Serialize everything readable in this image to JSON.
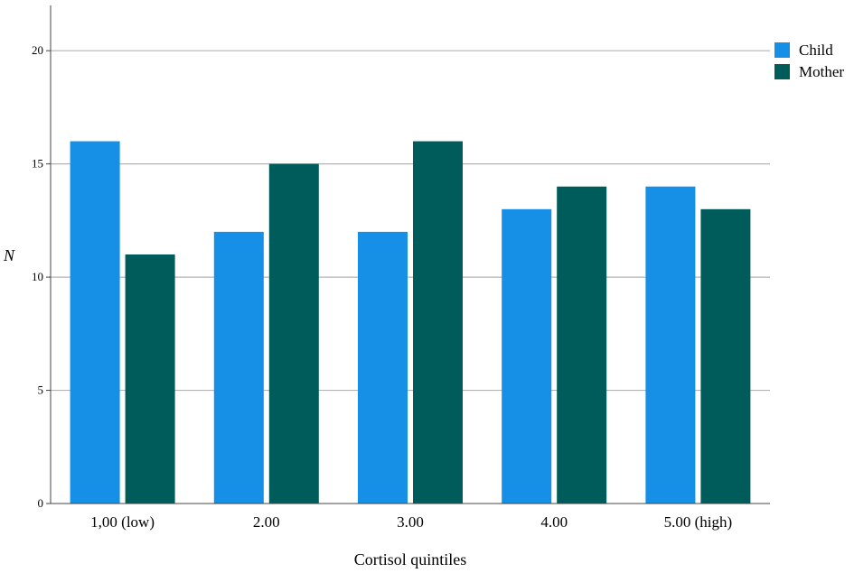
{
  "chart_data": {
    "type": "bar",
    "title": "",
    "xlabel": "Cortisol quintiles",
    "ylabel": "N",
    "ylim": [
      0,
      22
    ],
    "yticks": [
      0,
      5,
      10,
      15,
      20
    ],
    "grid": true,
    "legend_position": "top-right",
    "categories": [
      "1,00 (low)",
      "2.00",
      "3.00",
      "4.00",
      "5.00 (high)"
    ],
    "series": [
      {
        "name": "Child",
        "color": "#1590e6",
        "values": [
          16,
          12,
          12,
          13,
          14
        ]
      },
      {
        "name": "Mother",
        "color": "#005c5a",
        "values": [
          11,
          15,
          16,
          14,
          13
        ]
      }
    ]
  }
}
